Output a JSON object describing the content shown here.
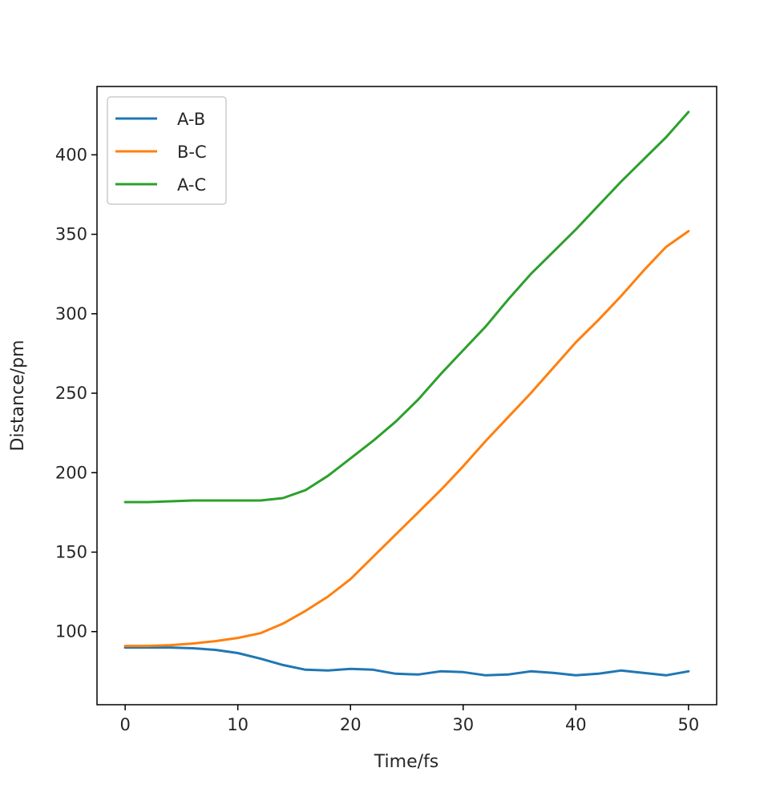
{
  "chart_data": {
    "type": "line",
    "title": "",
    "xlabel": "Time/fs",
    "ylabel": "Distance/pm",
    "xlim": [
      -2.5,
      52.5
    ],
    "ylim": [
      54,
      443
    ],
    "xticks": [
      "0",
      "10",
      "20",
      "30",
      "40",
      "50"
    ],
    "yticks": [
      "100",
      "150",
      "200",
      "250",
      "300",
      "350",
      "400"
    ],
    "grid": false,
    "legend": {
      "position": "top-left"
    },
    "series": [
      {
        "name": "A-B",
        "color": "#1f77b4",
        "points": [
          [
            0,
            90
          ],
          [
            2,
            90
          ],
          [
            4,
            90
          ],
          [
            6,
            89.5
          ],
          [
            8,
            88.5
          ],
          [
            10,
            86.5
          ],
          [
            12,
            83
          ],
          [
            14,
            79
          ],
          [
            16,
            76
          ],
          [
            18,
            75.5
          ],
          [
            20,
            76.5
          ],
          [
            22,
            76
          ],
          [
            24,
            73.5
          ],
          [
            26,
            73
          ],
          [
            28,
            75
          ],
          [
            30,
            74.5
          ],
          [
            32,
            72.5
          ],
          [
            34,
            73
          ],
          [
            36,
            75
          ],
          [
            38,
            74
          ],
          [
            40,
            72.5
          ],
          [
            42,
            73.5
          ],
          [
            44,
            75.5
          ],
          [
            46,
            74
          ],
          [
            48,
            72.5
          ],
          [
            50,
            75
          ]
        ]
      },
      {
        "name": "B-C",
        "color": "#ff7f0e",
        "points": [
          [
            0,
            91
          ],
          [
            2,
            91
          ],
          [
            4,
            91.5
          ],
          [
            6,
            92.5
          ],
          [
            8,
            94
          ],
          [
            10,
            96
          ],
          [
            12,
            99
          ],
          [
            14,
            105
          ],
          [
            16,
            113
          ],
          [
            18,
            122
          ],
          [
            20,
            133
          ],
          [
            22,
            147
          ],
          [
            24,
            161
          ],
          [
            26,
            175
          ],
          [
            28,
            189
          ],
          [
            30,
            204
          ],
          [
            32,
            220
          ],
          [
            34,
            235
          ],
          [
            36,
            250
          ],
          [
            38,
            266
          ],
          [
            40,
            282
          ],
          [
            42,
            296
          ],
          [
            44,
            311
          ],
          [
            46,
            327
          ],
          [
            48,
            342
          ],
          [
            50,
            352
          ]
        ]
      },
      {
        "name": "A-C",
        "color": "#2ca02c",
        "points": [
          [
            0,
            181.5
          ],
          [
            2,
            181.5
          ],
          [
            4,
            182
          ],
          [
            6,
            182.5
          ],
          [
            8,
            182.5
          ],
          [
            10,
            182.5
          ],
          [
            12,
            182.5
          ],
          [
            14,
            184
          ],
          [
            16,
            189
          ],
          [
            18,
            198
          ],
          [
            20,
            209
          ],
          [
            22,
            220
          ],
          [
            24,
            232
          ],
          [
            26,
            246
          ],
          [
            28,
            262
          ],
          [
            30,
            277
          ],
          [
            32,
            292
          ],
          [
            34,
            309
          ],
          [
            36,
            325
          ],
          [
            38,
            339
          ],
          [
            40,
            353
          ],
          [
            42,
            368
          ],
          [
            44,
            383
          ],
          [
            46,
            397
          ],
          [
            48,
            411
          ],
          [
            50,
            427
          ]
        ]
      }
    ]
  }
}
